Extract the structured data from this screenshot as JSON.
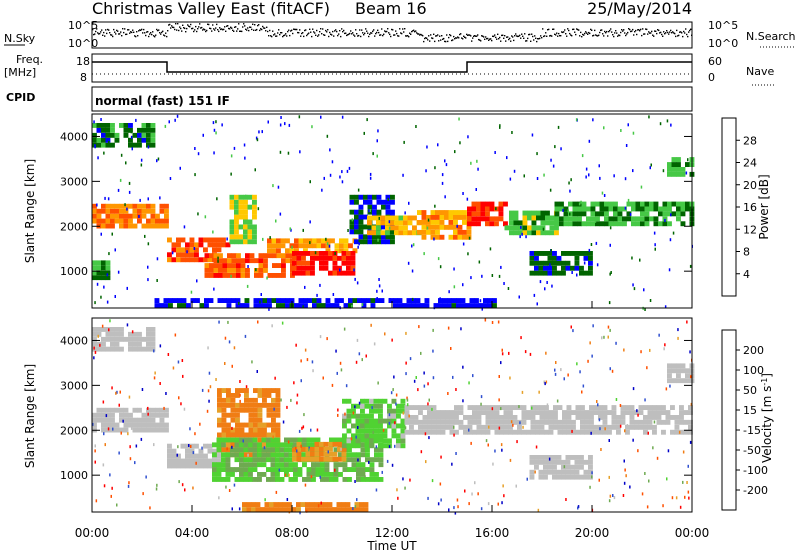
{
  "header": {
    "title": "Christmas Valley East (fitACF)",
    "beam": "Beam 16",
    "date": "25/May/2014"
  },
  "noise_panel": {
    "left_label": "N.Sky",
    "right_label": "N.Search",
    "left_ticks": [
      "10^5",
      "10^0"
    ],
    "right_ticks": [
      "10^5",
      "10^0"
    ]
  },
  "freq_panel": {
    "left_label_line1": "Freq.",
    "left_label_line2": "[MHz]",
    "right_label": "Nave",
    "left_ticks": [
      "18",
      "8"
    ],
    "right_ticks": [
      "60",
      "0"
    ],
    "freq_steps": [
      {
        "t_start": 0.0,
        "t_end": 3.0,
        "level": "high"
      },
      {
        "t_start": 3.0,
        "t_end": 15.0,
        "level": "low"
      },
      {
        "t_start": 15.0,
        "t_end": 24.0,
        "level": "high"
      }
    ]
  },
  "cpid": {
    "label": "CPID",
    "text": "normal (fast) 151 IF"
  },
  "power_panel": {
    "ylabel": "Slant Range [km]",
    "yticks": [
      "4000",
      "3000",
      "2000",
      "1000"
    ],
    "colorbar_label": "Power [dB]",
    "colorbar_ticks": [
      "28",
      "24",
      "20",
      "16",
      "12",
      "8",
      "4"
    ],
    "colorbar_colors": [
      "#ff0000",
      "#ff5000",
      "#ff9600",
      "#ffc800",
      "#3cb43c",
      "#46c846",
      "#006400",
      "#0000ff"
    ]
  },
  "velocity_panel": {
    "ylabel": "Slant Range [km]",
    "yticks": [
      "4000",
      "3000",
      "2000",
      "1000"
    ],
    "colorbar_label": "Velocity [m s^-1]",
    "colorbar_ticks": [
      "200",
      "100",
      "50",
      "15",
      "-15",
      "-50",
      "-100",
      "-200"
    ],
    "colorbar_colors": [
      "#0000c8",
      "#3050d0",
      "#6eaa50",
      "#50d232",
      "#bebebe",
      "#e6a028",
      "#f07d14",
      "#ff5000",
      "#ff0000"
    ]
  },
  "x_axis": {
    "ticks": [
      "00:00",
      "04:00",
      "08:00",
      "12:00",
      "16:00",
      "20:00",
      "00:00"
    ],
    "label": "Time UT"
  },
  "chart_data": {
    "type": "heatmap",
    "x_range_hours": [
      0,
      24
    ],
    "y_range_km": [
      180,
      4500
    ],
    "power_features": [
      {
        "t0": 0.0,
        "t1": 3.0,
        "r0": 1950,
        "r1": 2500,
        "p": 22
      },
      {
        "t0": 0.0,
        "t1": 2.5,
        "r0": 3750,
        "r1": 4300,
        "p": 10
      },
      {
        "t0": 0.0,
        "t1": 0.7,
        "r0": 800,
        "r1": 1200,
        "p": 11
      },
      {
        "t0": 3.0,
        "t1": 5.5,
        "r0": 1200,
        "r1": 1650,
        "p": 24
      },
      {
        "t0": 5.5,
        "t1": 6.5,
        "r0": 1600,
        "r1": 2600,
        "p": 16
      },
      {
        "t0": 4.5,
        "t1": 8.0,
        "r0": 850,
        "r1": 1400,
        "p": 24
      },
      {
        "t0": 7.0,
        "t1": 10.5,
        "r0": 1400,
        "r1": 1700,
        "p": 20
      },
      {
        "t0": 8.0,
        "t1": 10.5,
        "r0": 900,
        "r1": 1450,
        "p": 28
      },
      {
        "t0": 10.3,
        "t1": 12.0,
        "r0": 1600,
        "r1": 2600,
        "p": 8
      },
      {
        "t0": 11.0,
        "t1": 13.0,
        "r0": 1800,
        "r1": 2200,
        "p": 18
      },
      {
        "t0": 13.0,
        "t1": 15.0,
        "r0": 1700,
        "r1": 2300,
        "p": 20
      },
      {
        "t0": 15.0,
        "t1": 16.5,
        "r0": 2000,
        "r1": 2500,
        "p": 26
      },
      {
        "t0": 16.5,
        "t1": 18.5,
        "r0": 1800,
        "r1": 2300,
        "p": 14
      },
      {
        "t0": 18.5,
        "t1": 24.0,
        "r0": 2000,
        "r1": 2500,
        "p": 12
      },
      {
        "t0": 17.5,
        "t1": 20.0,
        "r0": 900,
        "r1": 1400,
        "p": 9
      },
      {
        "t0": 23.0,
        "t1": 24.0,
        "r0": 3100,
        "r1": 3500,
        "p": 14
      },
      {
        "t0": 2.5,
        "t1": 16.0,
        "r0": 180,
        "r1": 400,
        "p": 6
      }
    ],
    "velocity_features": [
      {
        "t0": 0.0,
        "t1": 3.0,
        "r0": 1950,
        "r1": 2500,
        "v": 0
      },
      {
        "t0": 0.0,
        "t1": 2.5,
        "r0": 3750,
        "r1": 4300,
        "v": 0
      },
      {
        "t0": 3.0,
        "t1": 5.5,
        "r0": 1150,
        "r1": 1700,
        "v": 0
      },
      {
        "t0": 5.0,
        "t1": 7.5,
        "r0": 1400,
        "r1": 2900,
        "v": -40
      },
      {
        "t0": 4.8,
        "t1": 11.5,
        "r0": 850,
        "r1": 1750,
        "v": 30
      },
      {
        "t0": 8.0,
        "t1": 10.0,
        "r0": 1300,
        "r1": 1650,
        "v": -30
      },
      {
        "t0": 10.0,
        "t1": 12.5,
        "r0": 1600,
        "r1": 2700,
        "v": 25
      },
      {
        "t0": 12.5,
        "t1": 24.0,
        "r0": 1900,
        "r1": 2500,
        "v": 0
      },
      {
        "t0": 17.5,
        "t1": 20.0,
        "r0": 900,
        "r1": 1400,
        "v": 0
      },
      {
        "t0": 23.0,
        "t1": 24.0,
        "r0": 3050,
        "r1": 3450,
        "v": 0
      },
      {
        "t0": 6.0,
        "t1": 11.0,
        "r0": 180,
        "r1": 400,
        "v": -40
      }
    ]
  }
}
